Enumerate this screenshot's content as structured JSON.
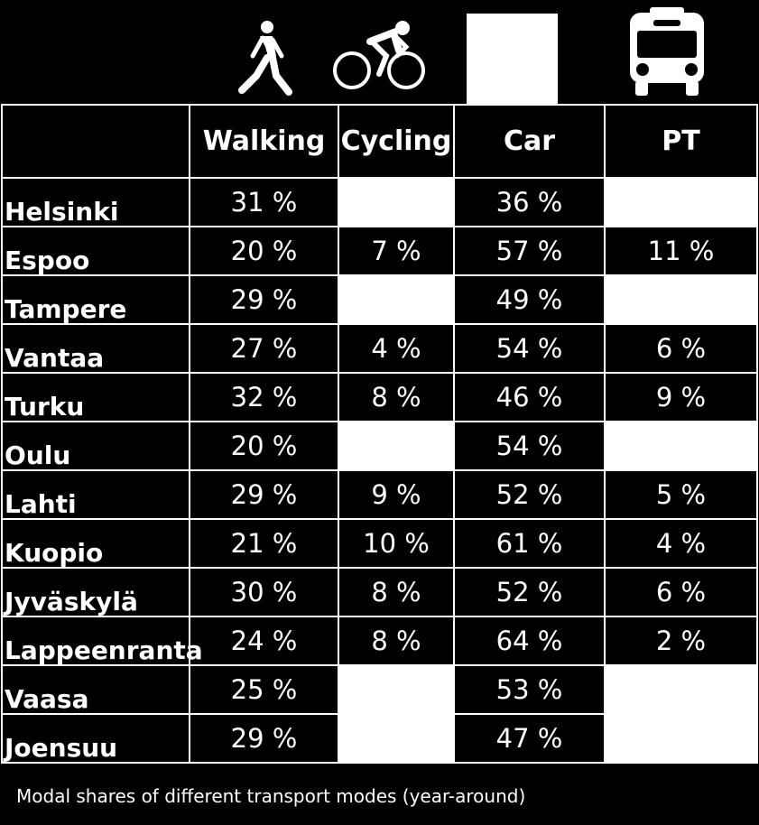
{
  "chart_data": {
    "type": "table",
    "columns": [
      "",
      "Walking",
      "Cycling",
      "Car",
      "PT"
    ],
    "icons": [
      "walking-person-icon",
      "cyclist-icon",
      "car-icon",
      "bus-icon"
    ],
    "rows": [
      {
        "city": "Helsinki",
        "values": [
          "31 %",
          "",
          "36 %",
          ""
        ]
      },
      {
        "city": "Espoo",
        "values": [
          "20 %",
          "7 %",
          "57 %",
          "11 %"
        ]
      },
      {
        "city": "Tampere",
        "values": [
          "29 %",
          "",
          "49 %",
          ""
        ]
      },
      {
        "city": "Vantaa",
        "values": [
          "27 %",
          "4 %",
          "54 %",
          "6 %"
        ]
      },
      {
        "city": "Turku",
        "values": [
          "32 %",
          "8 %",
          "46 %",
          "9 %"
        ]
      },
      {
        "city": "Oulu",
        "values": [
          "20 %",
          "",
          "54 %",
          ""
        ]
      },
      {
        "city": "Lahti",
        "values": [
          "29 %",
          "9 %",
          "52 %",
          "5 %"
        ]
      },
      {
        "city": "Kuopio",
        "values": [
          "21 %",
          "10 %",
          "61 %",
          "4 %"
        ]
      },
      {
        "city": "Jyväskylä",
        "values": [
          "30 %",
          "8 %",
          "52 %",
          "6 %"
        ]
      },
      {
        "city": "Lappeenranta",
        "values": [
          "24 %",
          "8 %",
          "64 %",
          "2 %"
        ]
      },
      {
        "city": "Vaasa",
        "values": [
          "25 %",
          "",
          "53 %",
          ""
        ]
      },
      {
        "city": "Joensuu",
        "values": [
          "29 %",
          "",
          "47 %",
          ""
        ]
      }
    ],
    "blank_cells": [
      [
        0,
        1
      ],
      [
        0,
        3
      ],
      [
        2,
        1
      ],
      [
        2,
        3
      ],
      [
        5,
        1
      ],
      [
        5,
        3
      ],
      [
        10,
        1
      ],
      [
        10,
        3
      ],
      [
        11,
        1
      ],
      [
        11,
        3
      ]
    ],
    "colors": {
      "background": "#000000",
      "text": "#ffffff",
      "blank_cell": "#ffffff"
    }
  },
  "caption": "Modal shares of different transport modes (year-around)"
}
